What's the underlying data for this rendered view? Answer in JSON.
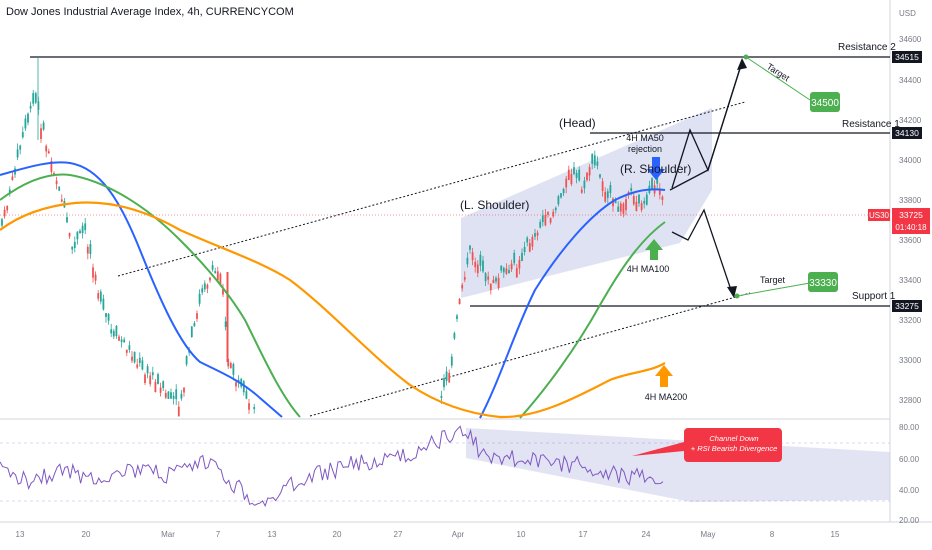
{
  "header": {
    "title": "Dow Jones Industrial Average Index, 4h, CURRENCYCOM",
    "currency": "USD"
  },
  "price_axis": {
    "ticks": [
      "34600",
      "34400",
      "34200",
      "34000",
      "33800",
      "33600",
      "33400",
      "33200",
      "33000",
      "32800"
    ]
  },
  "rsi_axis": {
    "ticks": [
      "80.00",
      "60.00",
      "40.00",
      "20.00"
    ]
  },
  "time_axis": {
    "ticks": [
      "13",
      "20",
      "Mar",
      "7",
      "13",
      "20",
      "27",
      "Apr",
      "10",
      "17",
      "24",
      "May",
      "8",
      "15"
    ]
  },
  "price_badges": {
    "resistance2": "34515",
    "resistance1": "34130",
    "current_symbol": "US30",
    "current_value": "33725",
    "countdown": "01:40:18",
    "support1": "33275"
  },
  "annotations": {
    "resistance2": "Resistance 2",
    "resistance1": "Resistance 1",
    "support1": "Support 1",
    "head": "(Head)",
    "left_shoulder": "(L. Shoulder)",
    "right_shoulder": "(R. Shoulder)",
    "ma50_rejection_1": "4H MA50",
    "ma50_rejection_2": "rejection",
    "ma100": "4H MA100",
    "ma200": "4H MA200",
    "target_upper": "Target",
    "target_lower": "Target",
    "target_upper_value": "34500",
    "target_lower_value": "33330",
    "callout_1": "Channel Down",
    "callout_2": "+ RSI Bearish Divergence"
  },
  "colors": {
    "ma50": "#2962ff",
    "ma100": "#4caf50",
    "ma200": "#ff9800",
    "rsi": "#7e57c2",
    "up_candle": "#26a69a",
    "down_candle": "#ef5350",
    "target_box": "#4caf50",
    "callout": "#f23645",
    "current_price": "#f23645",
    "highlight": "#c5cae9"
  },
  "chart_data": {
    "type": "candlestick",
    "title": "Dow Jones Industrial Average Index, 4h, CURRENCYCOM",
    "ylim": [
      32700,
      34700
    ],
    "levels": {
      "resistance2": 34515,
      "resistance1": 34130,
      "support1": 33275,
      "current": 33725
    },
    "targets": [
      34500,
      33330
    ],
    "series": [
      {
        "name": "4H MA50",
        "values": [
          33950,
          33900,
          33650,
          33200,
          32900,
          32800,
          33350,
          33700,
          33850
        ]
      },
      {
        "name": "4H MA100",
        "values": [
          33750,
          33880,
          33750,
          33400,
          33000,
          32700,
          32800,
          33200,
          33650
        ]
      },
      {
        "name": "4H MA200",
        "values": [
          33600,
          33700,
          33650,
          33500,
          33200,
          32950,
          32820,
          32800,
          32950
        ]
      }
    ],
    "rsi": {
      "ylim": [
        20,
        80
      ],
      "ticks": [
        80,
        60,
        40,
        20
      ]
    }
  }
}
